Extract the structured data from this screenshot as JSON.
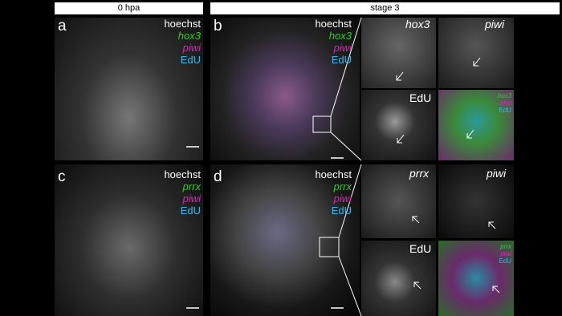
{
  "headers": [
    "0 hpa",
    "stage 3"
  ],
  "panel_a": {
    "letter": "a",
    "labels": [
      "hoechst",
      "hox3",
      "piwi",
      "EdU"
    ]
  },
  "panel_b": {
    "letter": "b",
    "labels": [
      "hoechst",
      "hox3",
      "piwi",
      "EdU"
    ],
    "insets": [
      "hox3",
      "piwi",
      "EdU"
    ],
    "merge_labels": [
      "hox3",
      "piwi",
      "EdU"
    ]
  },
  "panel_c": {
    "letter": "c",
    "labels": [
      "hoechst",
      "prrx",
      "piwi",
      "EdU"
    ]
  },
  "panel_d": {
    "letter": "d",
    "labels": [
      "hoechst",
      "prrx",
      "piwi",
      "EdU"
    ],
    "insets": [
      "prrx",
      "piwi",
      "EdU"
    ],
    "merge_labels": [
      "prrx",
      "piwi",
      "EdU"
    ]
  }
}
